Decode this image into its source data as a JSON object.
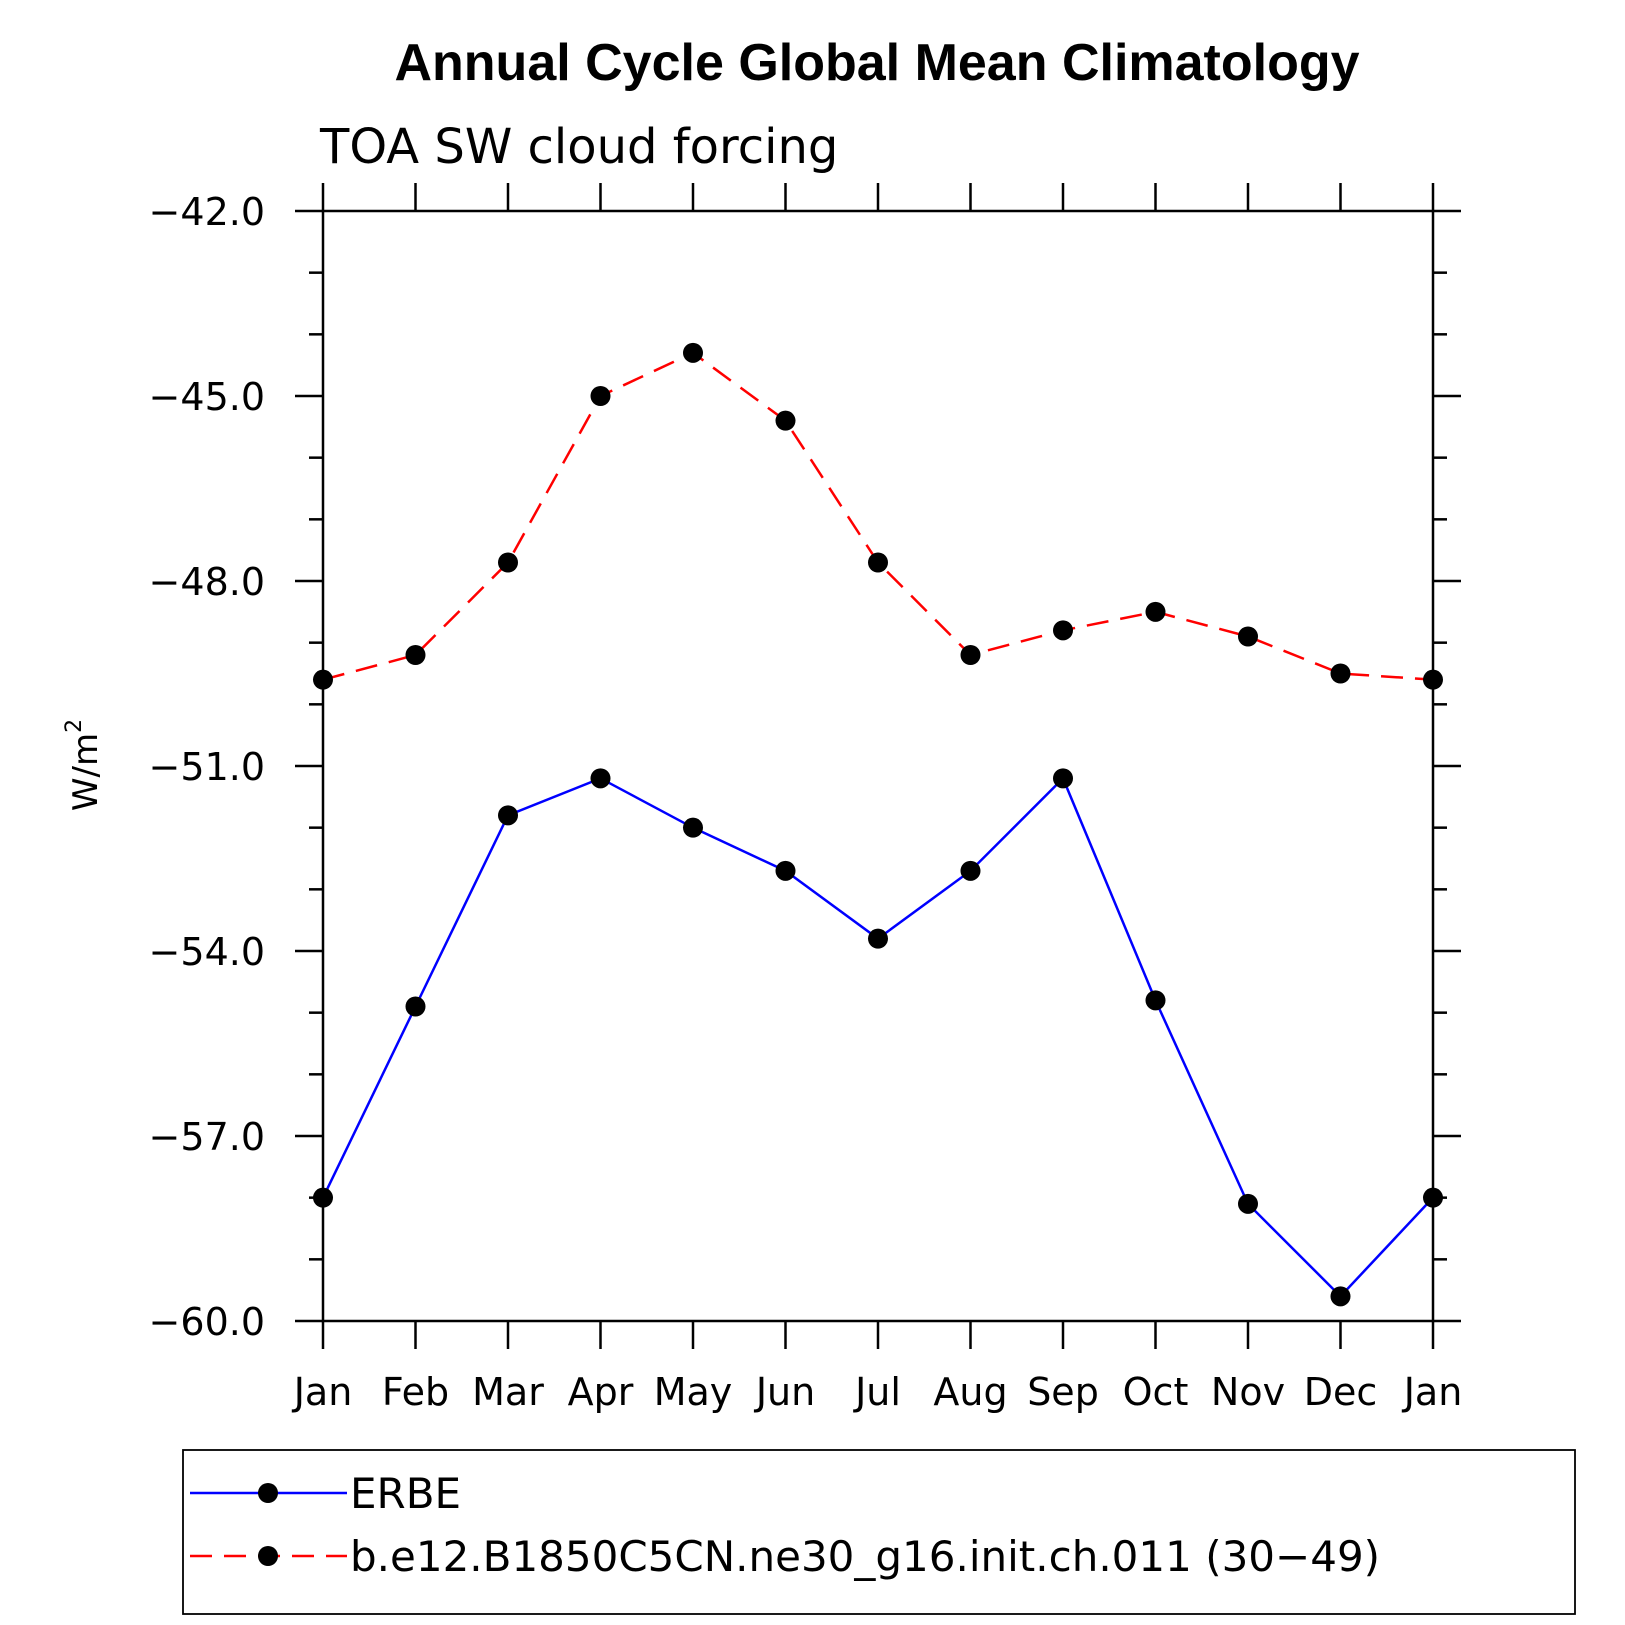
{
  "chart_data": {
    "type": "line",
    "title": "Annual Cycle Global Mean Climatology",
    "subtitle": "TOA SW cloud forcing",
    "ylabel": "W/m",
    "ylabel_sup": "2",
    "ylim": [
      -60.0,
      -42.0
    ],
    "yticks": [
      "−42.0",
      "−45.0",
      "−48.0",
      "−51.0",
      "−54.0",
      "−57.0",
      "−60.0"
    ],
    "ytick_values": [
      -42.0,
      -45.0,
      -48.0,
      -51.0,
      -54.0,
      -57.0,
      -60.0
    ],
    "categories": [
      "Jan",
      "Feb",
      "Mar",
      "Apr",
      "May",
      "Jun",
      "Jul",
      "Aug",
      "Sep",
      "Oct",
      "Nov",
      "Dec",
      "Jan"
    ],
    "series": [
      {
        "name": "ERBE",
        "color": "#0000ff",
        "dash": "solid",
        "values": [
          -58.0,
          -54.9,
          -51.8,
          -51.2,
          -52.0,
          -52.7,
          -53.8,
          -52.7,
          -51.2,
          -54.8,
          -58.1,
          -59.6,
          -58.0
        ]
      },
      {
        "name": "b.e12.B1850C5CN.ne30_g16.init.ch.011 (30−49)",
        "color": "#ff0000",
        "dash": "dashed",
        "values": [
          -49.6,
          -49.2,
          -47.7,
          -45.0,
          -44.3,
          -45.4,
          -47.7,
          -49.2,
          -48.8,
          -48.5,
          -48.9,
          -49.5,
          -49.6
        ]
      }
    ],
    "grid": false,
    "legend_position": "bottom"
  }
}
